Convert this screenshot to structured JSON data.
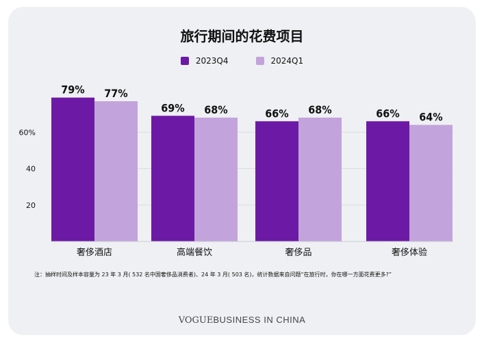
{
  "title": "旅行期间的花费项目",
  "note": "注：抽样时间及样本容量为 23 年 3 月( 532 名中国奢侈品消费者)、24 年 3 月( 503 名)，统计数据来自问题“在旅行时，你在哪一方面花费更多?”",
  "brand": {
    "part1": "VOGUE",
    "part2": "BUSINESS IN CHINA"
  },
  "colors": {
    "series1": "#6c1aa5",
    "series2": "#c3a3db",
    "card": "#eef0f3"
  },
  "chart_data": {
    "type": "bar",
    "title": "旅行期间的花费项目",
    "categories": [
      "奢侈酒店",
      "高端餐饮",
      "奢侈品",
      "奢侈体验"
    ],
    "series": [
      {
        "name": "2023Q4",
        "values": [
          79,
          69,
          66,
          66
        ],
        "labels": [
          "79%",
          "69%",
          "66%",
          "66%"
        ]
      },
      {
        "name": "2024Q1",
        "values": [
          77,
          68,
          68,
          64
        ],
        "labels": [
          "77%",
          "68%",
          "68%",
          "64%"
        ]
      }
    ],
    "yticks": [
      "20",
      "40",
      "60%"
    ],
    "ytick_values": [
      20,
      40,
      60
    ],
    "ylim": [
      0,
      80
    ],
    "legend": "top-center",
    "grid": true
  }
}
